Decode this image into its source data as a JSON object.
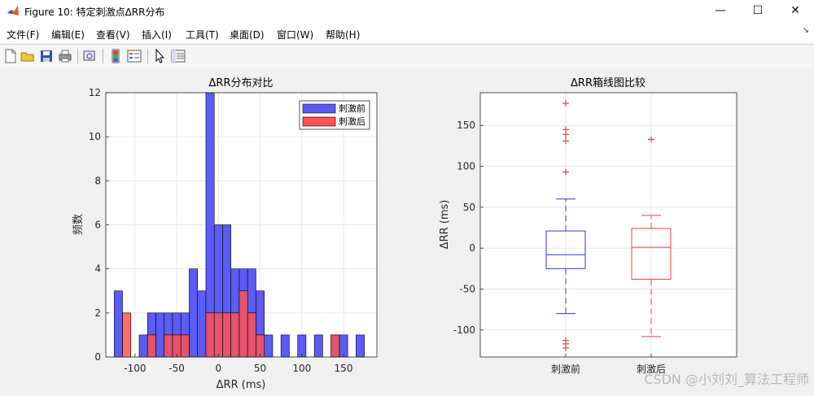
{
  "window": {
    "title": "Figure 10: 特定刺激点ΔRR分布",
    "minimize_glyph": "—",
    "maximize_glyph": "☐",
    "close_glyph": "✕"
  },
  "menu": {
    "items": [
      "文件(F)",
      "编辑(E)",
      "查看(V)",
      "插入(I)",
      "工具(T)",
      "桌面(D)",
      "窗口(W)",
      "帮助(H)"
    ],
    "dock_glyph": "↘"
  },
  "toolbar": {
    "icons": [
      "new-figure-icon",
      "open-file-icon",
      "save-icon",
      "print-icon",
      "print-preview-icon",
      "colorbar-icon",
      "legend-icon",
      "pointer-icon",
      "property-editor-icon"
    ]
  },
  "watermark": "CSDN @小刘刘_算法工程师",
  "chart_data": [
    {
      "type": "bar",
      "title": "ΔRR分布对比",
      "xlabel": "ΔRR (ms)",
      "ylabel": "频数",
      "xlim": [
        -135,
        190
      ],
      "ylim": [
        0,
        12
      ],
      "xticks": [
        -100,
        -50,
        0,
        50,
        100,
        150
      ],
      "yticks": [
        0,
        2,
        4,
        6,
        8,
        10,
        12
      ],
      "grid": true,
      "legend_position": "top-right",
      "bin_width": 10,
      "bin_edges": [
        -125,
        -115,
        -105,
        -95,
        -85,
        -75,
        -65,
        -55,
        -45,
        -35,
        -25,
        -15,
        -5,
        5,
        15,
        25,
        35,
        45,
        55,
        65,
        75,
        85,
        95,
        105,
        115,
        125,
        135,
        145,
        155,
        165,
        175,
        185
      ],
      "series": [
        {
          "name": "刺激前",
          "color": "#5b5bf5",
          "counts": [
            3,
            0,
            0,
            1,
            2,
            2,
            2,
            2,
            2,
            4,
            3,
            12,
            6,
            6,
            4,
            4,
            4,
            3,
            1,
            0,
            1,
            0,
            1,
            0,
            1,
            0,
            1,
            1,
            0,
            1,
            0
          ]
        },
        {
          "name": "刺激后",
          "color": "#ff5252",
          "counts": [
            0,
            2,
            0,
            0,
            1,
            0,
            1,
            1,
            1,
            0,
            0,
            2,
            2,
            2,
            2,
            3,
            2,
            1,
            0,
            0,
            0,
            0,
            0,
            0,
            0,
            0,
            1,
            0,
            0,
            0,
            0
          ]
        }
      ]
    },
    {
      "type": "box",
      "title": "ΔRR箱线图比较",
      "ylabel": "ΔRR (ms)",
      "categories": [
        "刺激前",
        "刺激后"
      ],
      "ylim": [
        -133,
        190
      ],
      "yticks": [
        -100,
        -50,
        0,
        50,
        100,
        150
      ],
      "grid": true,
      "series": [
        {
          "name": "刺激前",
          "color": "#3333e0",
          "whisker_low": -80,
          "q1": -25,
          "median": -8,
          "q3": 21,
          "whisker_high": 60,
          "outliers": [
            177,
            145,
            139,
            131,
            93,
            -113,
            -117,
            -122
          ]
        },
        {
          "name": "刺激后",
          "color": "#ee4040",
          "whisker_low": -108,
          "q1": -38,
          "median": 1,
          "q3": 24,
          "whisker_high": 40,
          "outliers": [
            133
          ]
        }
      ]
    }
  ]
}
